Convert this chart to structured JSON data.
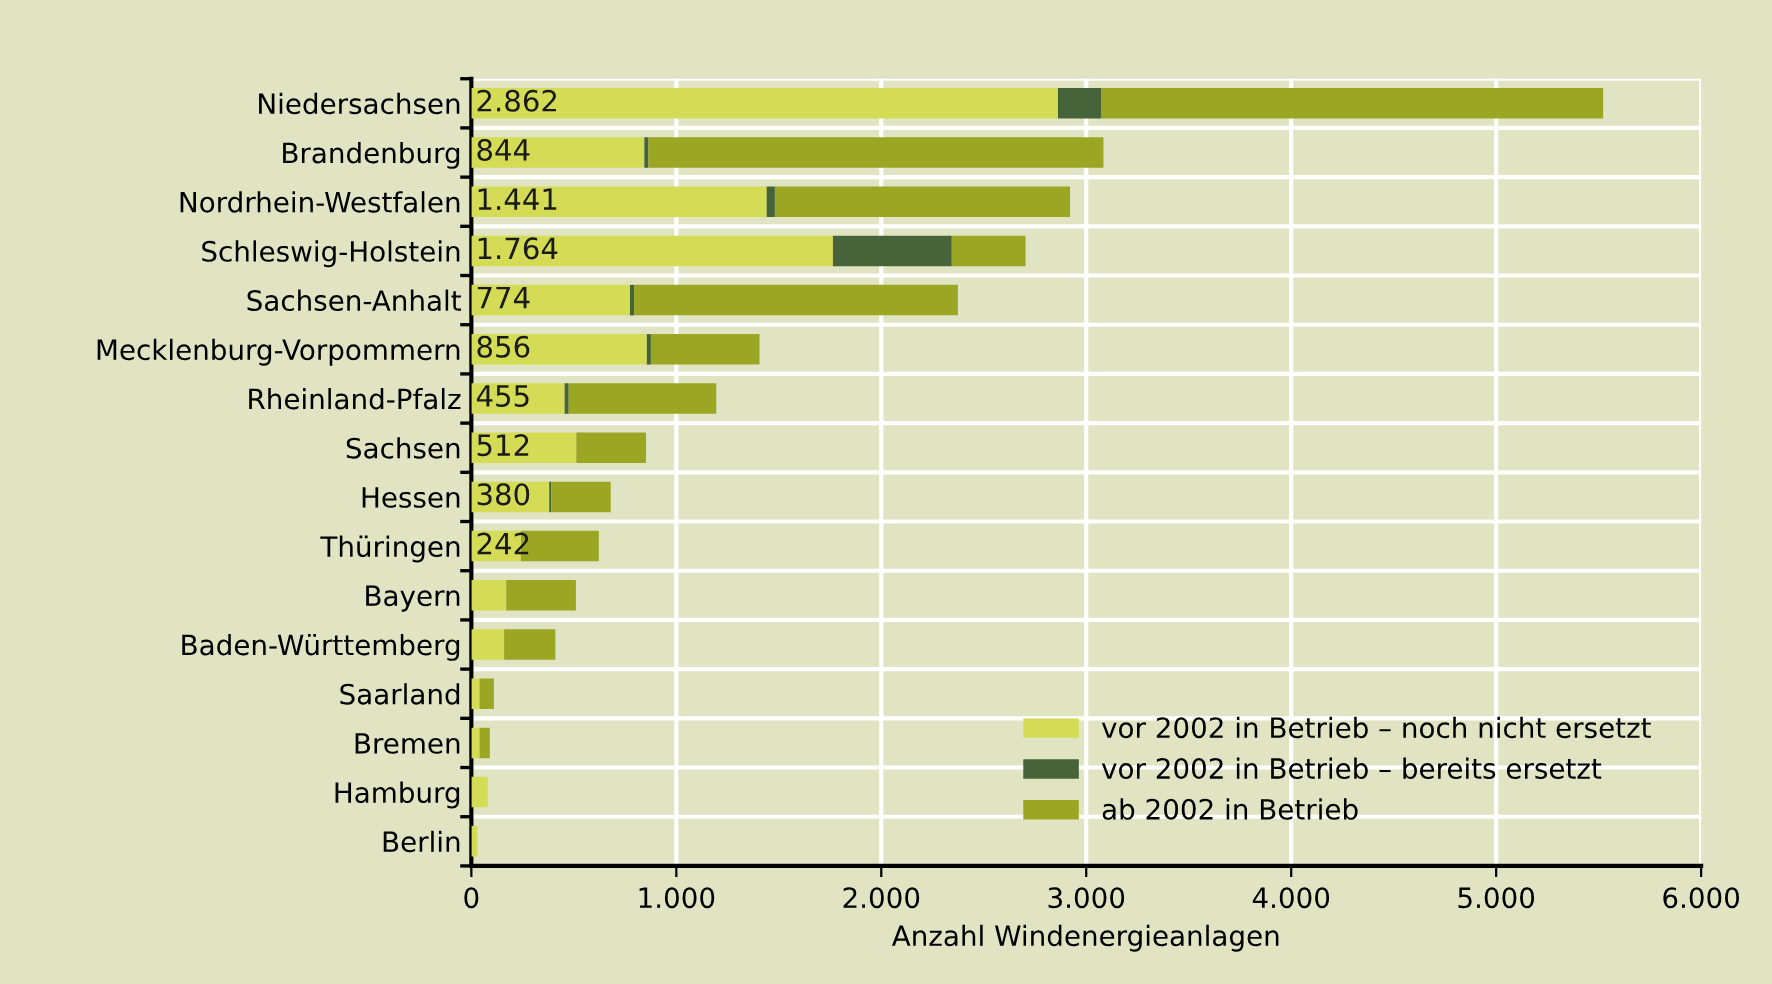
{
  "chart_data": {
    "type": "bar",
    "orientation": "horizontal",
    "stacked": true,
    "categories": [
      "Niedersachsen",
      "Brandenburg",
      "Nordrhein-Westfalen",
      "Schleswig-Holstein",
      "Sachsen-Anhalt",
      "Mecklenburg-Vorpommern",
      "Rheinland-Pfalz",
      "Sachsen",
      "Hessen",
      "Thüringen",
      "Bayern",
      "Baden-Württemberg",
      "Saarland",
      "Bremen",
      "Hamburg",
      "Berlin"
    ],
    "series": [
      {
        "name": "vor 2002 in Betrieb – noch nicht ersetzt",
        "color": "#d4dc55",
        "values": [
          2862,
          844,
          1441,
          1764,
          774,
          856,
          455,
          512,
          380,
          242,
          170,
          160,
          40,
          40,
          80,
          30
        ],
        "value_labels": [
          "2.862",
          "844",
          "1.441",
          "1.764",
          "774",
          "856",
          "455",
          "512",
          "380",
          "242",
          null,
          null,
          null,
          null,
          null,
          null
        ]
      },
      {
        "name": "vor 2002 in Betrieb – bereits ersetzt",
        "color": "#46633a",
        "values": [
          210,
          20,
          40,
          580,
          20,
          20,
          20,
          0,
          10,
          0,
          0,
          0,
          0,
          0,
          0,
          0
        ]
      },
      {
        "name": "ab 2002 in Betrieb",
        "color": "#9ba622",
        "values": [
          2450,
          2220,
          1440,
          360,
          1580,
          530,
          720,
          340,
          290,
          380,
          340,
          250,
          70,
          50,
          0,
          0
        ]
      }
    ],
    "xlabel": "Anzahl Windenergieanlagen",
    "xlim": [
      0,
      6000
    ],
    "xticks": [
      0,
      {
        "value": 1000,
        "label": "1.000"
      },
      {
        "value": 2000,
        "label": "2.000"
      },
      {
        "value": 3000,
        "label": "3.000"
      },
      {
        "value": 4000,
        "label": "4.000"
      },
      {
        "value": 5000,
        "label": "5.000"
      },
      {
        "value": 6000,
        "label": "6.000"
      }
    ],
    "grid": "x",
    "legend": "bottom right"
  }
}
